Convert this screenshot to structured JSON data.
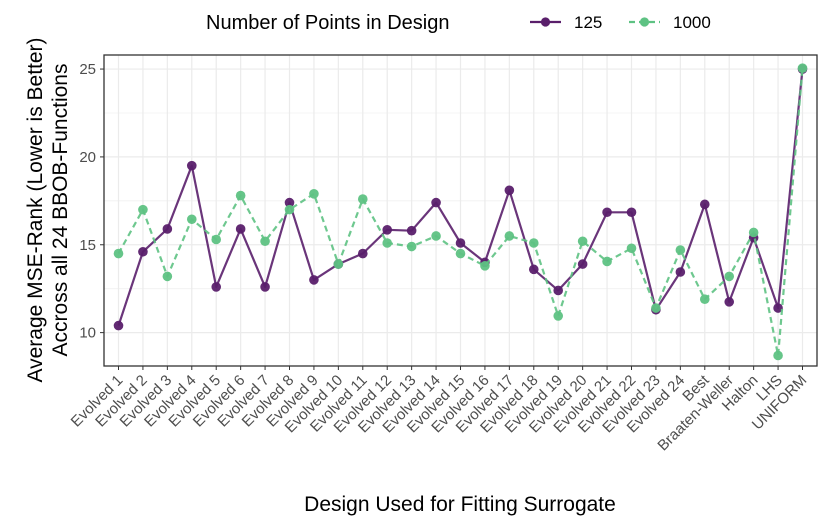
{
  "chart_data": {
    "type": "line",
    "xlabel": "Design Used for Fitting Surrogate",
    "ylabel_lines": [
      "Average MSE-Rank (Lower is Better)",
      "Accross all 24 BBOB-Functions"
    ],
    "ylim": [
      8.1,
      25.8
    ],
    "yticks": [
      10,
      15,
      20,
      25
    ],
    "legend": {
      "title": "Number of Points in Design",
      "position": "top"
    },
    "categories": [
      "Evolved 1",
      "Evolved 2",
      "Evolved 3",
      "Evolved 4",
      "Evolved 5",
      "Evolved 6",
      "Evolved 7",
      "Evolved 8",
      "Evolved 9",
      "Evolved 10",
      "Evolved 11",
      "Evolved 12",
      "Evolved 13",
      "Evolved 14",
      "Evolved 15",
      "Evolved 16",
      "Evolved 17",
      "Evolved 18",
      "Evolved 19",
      "Evolved 20",
      "Evolved 21",
      "Evolved 22",
      "Evolved 23",
      "Evolved 24",
      "Best",
      "Braaten-Weller",
      "Halton",
      "LHS",
      "UNIFORM"
    ],
    "series": [
      {
        "name": "125",
        "color": "#5a1f6b",
        "dash": "solid",
        "values": [
          10.4,
          14.6,
          15.9,
          19.5,
          12.6,
          15.9,
          12.6,
          17.4,
          13.0,
          13.9,
          14.5,
          15.85,
          15.8,
          17.4,
          15.1,
          14.0,
          18.1,
          13.6,
          12.4,
          13.9,
          16.85,
          16.85,
          11.3,
          13.45,
          17.3,
          11.75,
          15.4,
          11.4,
          25.0
        ]
      },
      {
        "name": "1000",
        "color": "#5ec283",
        "dash": "dashed",
        "values": [
          14.5,
          17.0,
          13.2,
          16.45,
          15.3,
          17.8,
          15.2,
          17.0,
          17.9,
          13.9,
          17.6,
          15.1,
          14.9,
          15.5,
          14.5,
          13.8,
          15.5,
          15.1,
          10.95,
          15.2,
          14.05,
          14.8,
          11.4,
          14.7,
          11.9,
          13.2,
          15.7,
          8.7,
          25.05
        ]
      }
    ]
  }
}
